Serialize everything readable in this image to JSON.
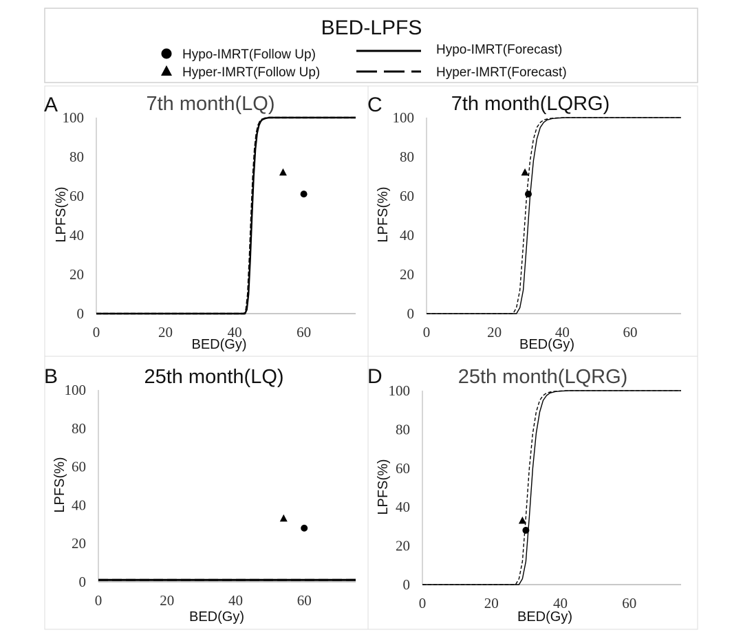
{
  "figure_title": "BED-LPFS",
  "legend": {
    "hypo_follow": "Hypo-IMRT(Follow Up)",
    "hyper_follow": "Hyper-IMRT(Follow Up)",
    "hypo_forecast": "Hypo-IMRT(Forecast)",
    "hyper_forecast": "Hyper-IMRT(Forecast)"
  },
  "chart_data": [
    {
      "type": "line",
      "panel": "A",
      "title": "7th month(LQ)",
      "xlabel": "BED(Gy)",
      "ylabel": "LPFS(%)",
      "xlim": [
        0,
        75
      ],
      "ylim": [
        0,
        100
      ],
      "xticks": [
        0,
        20,
        40,
        60
      ],
      "yticks": [
        0,
        20,
        40,
        60,
        80,
        100
      ],
      "series": [
        {
          "name": "Hypo-IMRT(Forecast)",
          "style": "solid",
          "x": [
            0,
            43,
            43.5,
            44,
            44.5,
            45,
            45.5,
            46,
            46.5,
            47,
            47.5,
            48,
            49,
            50,
            75
          ],
          "y": [
            0,
            0,
            2,
            10,
            28,
            50,
            70,
            84,
            92,
            96,
            98,
            99,
            99.7,
            100,
            100
          ]
        },
        {
          "name": "Hyper-IMRT(Forecast)",
          "style": "dashed",
          "x": [
            0,
            42.8,
            43.3,
            43.8,
            44.3,
            44.8,
            45.3,
            45.8,
            46.3,
            46.8,
            47.3,
            47.8,
            48.8,
            49.8,
            75
          ],
          "y": [
            0,
            0,
            2,
            10,
            28,
            50,
            70,
            84,
            92,
            96,
            98,
            99,
            99.7,
            100,
            100
          ]
        },
        {
          "name": "Hypo-IMRT(Follow Up)",
          "marker": "circle",
          "x": [
            60
          ],
          "y": [
            61
          ]
        },
        {
          "name": "Hyper-IMRT(Follow Up)",
          "marker": "triangle",
          "x": [
            54
          ],
          "y": [
            72
          ]
        }
      ]
    },
    {
      "type": "line",
      "panel": "C",
      "title": "7th month(LQRG)",
      "xlabel": "BED(Gy)",
      "ylabel": "LPFS(%)",
      "xlim": [
        0,
        75
      ],
      "ylim": [
        0,
        100
      ],
      "xticks": [
        0,
        20,
        40,
        60
      ],
      "yticks": [
        0,
        20,
        40,
        60,
        80,
        100
      ],
      "series": [
        {
          "name": "Hypo-IMRT(Forecast)",
          "style": "solid",
          "x": [
            0,
            26.5,
            27.5,
            28.5,
            29.5,
            30.5,
            31.5,
            32.5,
            33.5,
            34.5,
            35.5,
            37,
            39,
            41,
            75
          ],
          "y": [
            0,
            0,
            3,
            12,
            35,
            60,
            78,
            89,
            95,
            97.5,
            98.8,
            99.5,
            99.8,
            100,
            100
          ]
        },
        {
          "name": "Hyper-IMRT(Forecast)",
          "style": "dashed",
          "x": [
            0,
            25.5,
            26.5,
            27.5,
            28.5,
            29.5,
            30.5,
            31.5,
            32.5,
            33.5,
            34.5,
            36,
            38,
            40,
            75
          ],
          "y": [
            0,
            0,
            3,
            12,
            35,
            60,
            78,
            89,
            95,
            97.5,
            98.8,
            99.5,
            99.8,
            100,
            100
          ]
        },
        {
          "name": "Hypo-IMRT(Follow Up)",
          "marker": "circle",
          "x": [
            30
          ],
          "y": [
            61
          ]
        },
        {
          "name": "Hyper-IMRT(Follow Up)",
          "marker": "triangle",
          "x": [
            29
          ],
          "y": [
            72
          ]
        }
      ]
    },
    {
      "type": "line",
      "panel": "B",
      "title": "25th month(LQ)",
      "xlabel": "BED(Gy)",
      "ylabel": "LPFS(%)",
      "xlim": [
        0,
        75
      ],
      "ylim": [
        0,
        100
      ],
      "xticks": [
        0,
        20,
        40,
        60
      ],
      "yticks": [
        0,
        20,
        40,
        60,
        80,
        100
      ],
      "series": [
        {
          "name": "Hypo-IMRT(Forecast)",
          "style": "solid",
          "x": [
            0,
            75
          ],
          "y": [
            1,
            1
          ]
        },
        {
          "name": "Hyper-IMRT(Forecast)",
          "style": "dashed",
          "x": [
            0,
            75
          ],
          "y": [
            1,
            1
          ]
        },
        {
          "name": "Hypo-IMRT(Follow Up)",
          "marker": "circle",
          "x": [
            60
          ],
          "y": [
            28
          ]
        },
        {
          "name": "Hyper-IMRT(Follow Up)",
          "marker": "triangle",
          "x": [
            54
          ],
          "y": [
            33
          ]
        }
      ]
    },
    {
      "type": "line",
      "panel": "D",
      "title": "25th month(LQRG)",
      "xlabel": "BED(Gy)",
      "ylabel": "LPFS(%)",
      "xlim": [
        0,
        75
      ],
      "ylim": [
        0,
        100
      ],
      "xticks": [
        0,
        20,
        40,
        60
      ],
      "yticks": [
        0,
        20,
        40,
        60,
        80,
        100
      ],
      "series": [
        {
          "name": "Hypo-IMRT(Forecast)",
          "style": "solid",
          "x": [
            0,
            28,
            29,
            30,
            31,
            32,
            33,
            34,
            35,
            36,
            37,
            38.5,
            40.5,
            42.5,
            75
          ],
          "y": [
            0,
            0,
            3,
            12,
            35,
            60,
            78,
            89,
            95,
            97.5,
            98.8,
            99.5,
            99.8,
            100,
            100
          ]
        },
        {
          "name": "Hyper-IMRT(Forecast)",
          "style": "dashed",
          "x": [
            0,
            27,
            28,
            29,
            30,
            31,
            32,
            33,
            34,
            35,
            36,
            37.5,
            39.5,
            41.5,
            75
          ],
          "y": [
            0,
            0,
            3,
            12,
            35,
            60,
            78,
            89,
            95,
            97.5,
            98.8,
            99.5,
            99.8,
            100,
            100
          ]
        },
        {
          "name": "Hypo-IMRT(Follow Up)",
          "marker": "circle",
          "x": [
            30
          ],
          "y": [
            28
          ]
        },
        {
          "name": "Hyper-IMRT(Follow Up)",
          "marker": "triangle",
          "x": [
            29
          ],
          "y": [
            33
          ]
        }
      ]
    }
  ]
}
